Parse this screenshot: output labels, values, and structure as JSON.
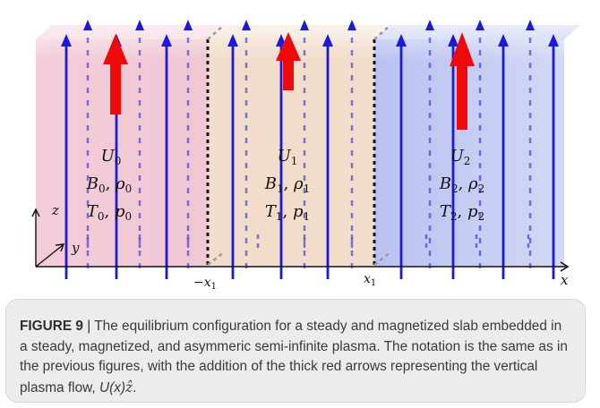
{
  "figure": {
    "regions": [
      {
        "id": "left",
        "color": "#f2c9d6"
      },
      {
        "id": "middle",
        "color": "#f0dcc8"
      },
      {
        "id": "right",
        "color": "#bfc7f2"
      }
    ],
    "labels": {
      "U0": "U",
      "U0_sub": "0",
      "B0": "B",
      "B0_sub": "0",
      "rho0": "ρ",
      "rho0_sub": "0",
      "T0": "T",
      "T0_sub": "0",
      "p0": "p",
      "p0_sub": "0",
      "U1": "U",
      "U1_sub": "1",
      "B1": "B",
      "B1_sub": "1",
      "rho1": "ρ",
      "rho1_sub": "1",
      "T1": "T",
      "T1_sub": "1",
      "p1": "p",
      "p1_sub": "1",
      "U2": "U",
      "U2_sub": "2",
      "B2": "B",
      "B2_sub": "2",
      "rho2": "ρ",
      "rho2_sub": "2",
      "T2": "T",
      "T2_sub": "2",
      "p2": "p",
      "p2_sub": "2",
      "axis_z": "z",
      "axis_y": "y",
      "axis_x": "x",
      "tick_neg": "−x",
      "tick_neg_sub": "1",
      "tick_pos": "x",
      "tick_pos_sub": "1"
    },
    "colors": {
      "field_line": "#1a1adf",
      "flow_arrow": "#ee0a0a",
      "boundary": "#111111"
    }
  },
  "caption": {
    "label": "FIGURE 9",
    "separator": " | ",
    "text_1": "The equilibrium configuration for a steady and magnetized slab embedded in a steady, magnetized, and asymmeric semi-infinite plasma. The notation is the same as in the previous figures, with the addition of the thick red arrows representing the vertical plasma flow, ",
    "flow_symbol": "U(x)",
    "zhat": "ẑ",
    "text_end": "."
  }
}
